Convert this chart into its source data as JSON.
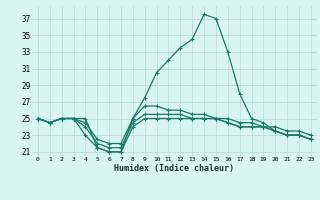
{
  "xlabel": "Humidex (Indice chaleur)",
  "x": [
    0,
    1,
    2,
    3,
    4,
    5,
    6,
    7,
    8,
    9,
    10,
    11,
    12,
    13,
    14,
    15,
    16,
    17,
    18,
    19,
    20,
    21,
    22,
    23
  ],
  "line1": [
    25,
    24.5,
    25,
    25,
    25,
    21.5,
    21,
    21,
    25,
    27.5,
    30.5,
    32,
    33.5,
    34.5,
    37.5,
    37,
    33,
    28,
    25,
    24.5,
    23.5,
    23,
    23,
    22.5
  ],
  "line2": [
    25,
    24.5,
    25,
    25,
    23,
    21.5,
    21,
    21,
    24,
    25.0,
    25.0,
    25.0,
    25,
    25,
    25,
    25,
    24.5,
    24,
    24,
    24,
    23.5,
    23,
    23,
    22.5
  ],
  "line3": [
    25,
    24.5,
    25,
    25,
    24,
    22,
    21.5,
    21.5,
    24.5,
    25.5,
    25.5,
    25.5,
    25.5,
    25,
    25,
    25,
    24.5,
    24,
    24,
    24,
    23.5,
    23,
    23,
    22.5
  ],
  "line4": [
    25,
    24.5,
    25,
    25,
    24.5,
    22.5,
    22,
    22,
    25,
    26.5,
    26.5,
    26,
    26,
    25.5,
    25.5,
    25,
    25,
    24.5,
    24.5,
    24,
    24,
    23.5,
    23.5,
    23
  ],
  "line_color": "#1a7a6a",
  "bg_color": "#d8f5f0",
  "grid_color": "#b8d8d4",
  "ylim": [
    20.5,
    38.5
  ],
  "yticks": [
    21,
    23,
    25,
    27,
    29,
    31,
    33,
    35,
    37
  ],
  "xlim": [
    -0.5,
    23.5
  ]
}
